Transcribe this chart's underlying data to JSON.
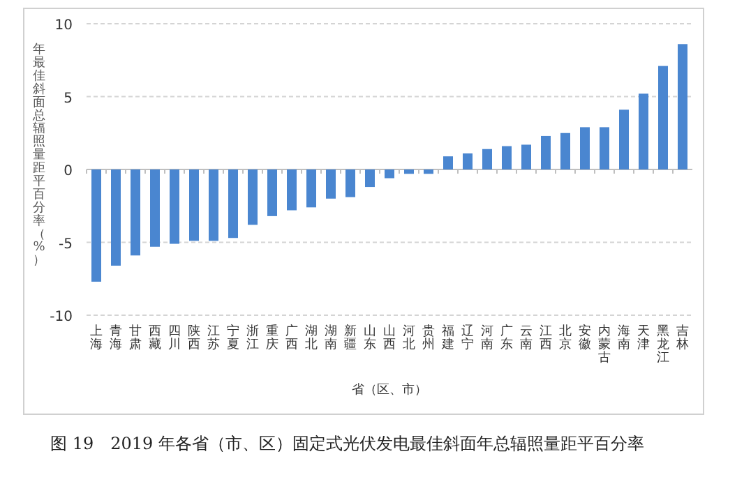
{
  "chart_data": {
    "type": "bar",
    "categories": [
      "上海",
      "青海",
      "甘肃",
      "西藏",
      "四川",
      "陕西",
      "江苏",
      "宁夏",
      "浙江",
      "重庆",
      "广西",
      "湖北",
      "湖南",
      "新疆",
      "山东",
      "山西",
      "河北",
      "贵州",
      "福建",
      "辽宁",
      "河南",
      "广东",
      "云南",
      "江西",
      "北京",
      "安徽",
      "内蒙古",
      "海南",
      "天津",
      "黑龙江",
      "吉林"
    ],
    "values": [
      -7.7,
      -6.6,
      -5.9,
      -5.3,
      -5.1,
      -4.9,
      -4.9,
      -4.7,
      -3.8,
      -3.2,
      -2.8,
      -2.6,
      -2.0,
      -1.9,
      -1.2,
      -0.6,
      -0.3,
      -0.3,
      0.9,
      1.1,
      1.4,
      1.6,
      1.7,
      2.3,
      2.5,
      2.9,
      2.9,
      4.1,
      5.2,
      7.1,
      8.6
    ],
    "color": "#4a86d0",
    "ylim": [
      -10,
      10
    ],
    "yticks": [
      -10,
      -5,
      0,
      5,
      10
    ],
    "grid": "y",
    "ylabel": "年最佳斜面总辐照量距平百分率（%）",
    "xlabel": "省（区、市）",
    "annotations": [
      "图 19　2019 年各省（市、区）固定式光伏发电最佳斜面年总辐照量距平百分率"
    ]
  }
}
